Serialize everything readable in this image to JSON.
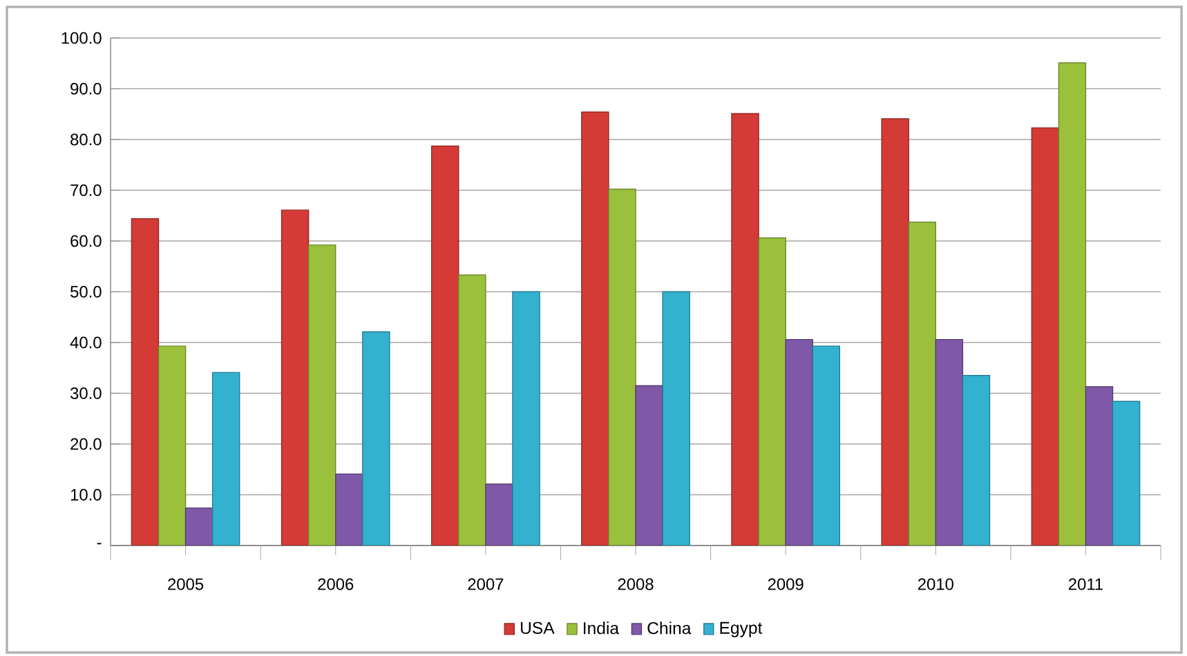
{
  "chart_data": {
    "type": "bar",
    "categories": [
      "2005",
      "2006",
      "2007",
      "2008",
      "2009",
      "2010",
      "2011"
    ],
    "series": [
      {
        "name": "USA",
        "color": "#d43b36",
        "values": [
          64.4,
          66.1,
          78.7,
          85.4,
          85.1,
          84.1,
          82.3
        ]
      },
      {
        "name": "India",
        "color": "#9bc13c",
        "values": [
          39.3,
          59.2,
          53.3,
          70.2,
          60.6,
          63.7,
          95.1
        ]
      },
      {
        "name": "China",
        "color": "#7f58a8",
        "values": [
          7.4,
          14.1,
          12.1,
          31.5,
          40.6,
          40.6,
          31.3
        ]
      },
      {
        "name": "Egypt",
        "color": "#33b2d0",
        "values": [
          34.1,
          42.1,
          50.0,
          50.0,
          39.3,
          33.5,
          28.4
        ]
      }
    ],
    "ylim": [
      0,
      100
    ],
    "yticks": [
      {
        "value": 0,
        "label": "-"
      },
      {
        "value": 10,
        "label": "10.0"
      },
      {
        "value": 20,
        "label": "20.0"
      },
      {
        "value": 30,
        "label": "30.0"
      },
      {
        "value": 40,
        "label": "40.0"
      },
      {
        "value": 50,
        "label": "50.0"
      },
      {
        "value": 60,
        "label": "60.0"
      },
      {
        "value": 70,
        "label": "70.0"
      },
      {
        "value": 80,
        "label": "80.0"
      },
      {
        "value": 90,
        "label": "90.0"
      },
      {
        "value": 100,
        "label": "100.0"
      }
    ],
    "grid": "y",
    "legend": "bottom"
  }
}
